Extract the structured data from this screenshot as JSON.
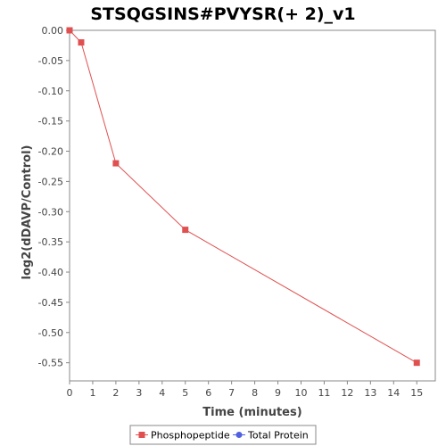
{
  "chart_data": {
    "type": "line",
    "title": "STSQGSINS#PVYSR(+ 2)_v1",
    "xlabel": "Time (minutes)",
    "ylabel": "log2(dDAVP/Control)",
    "xlim": [
      0,
      15.8
    ],
    "ylim": [
      -0.58,
      0.0
    ],
    "x_ticks": [
      0,
      1,
      2,
      3,
      4,
      5,
      6,
      7,
      8,
      9,
      10,
      11,
      12,
      13,
      14,
      15
    ],
    "y_ticks": [
      0.0,
      -0.05,
      -0.1,
      -0.15,
      -0.2,
      -0.25,
      -0.3,
      -0.35,
      -0.4,
      -0.45,
      -0.5,
      -0.55
    ],
    "y_tick_labels": [
      "0.00",
      "-0.05",
      "-0.10",
      "-0.15",
      "-0.20",
      "-0.25",
      "-0.30",
      "-0.35",
      "-0.40",
      "-0.45",
      "-0.50",
      "-0.55"
    ],
    "grid": false,
    "legend_position": "bottom",
    "series": [
      {
        "name": "Phosphopeptide",
        "color": "#e05050",
        "marker": "square",
        "x": [
          0,
          0.5,
          2,
          5,
          15
        ],
        "y": [
          0.0,
          -0.02,
          -0.22,
          -0.33,
          -0.55
        ]
      },
      {
        "name": "Total Protein",
        "color": "#5060e0",
        "marker": "circle",
        "x": [],
        "y": []
      }
    ]
  }
}
